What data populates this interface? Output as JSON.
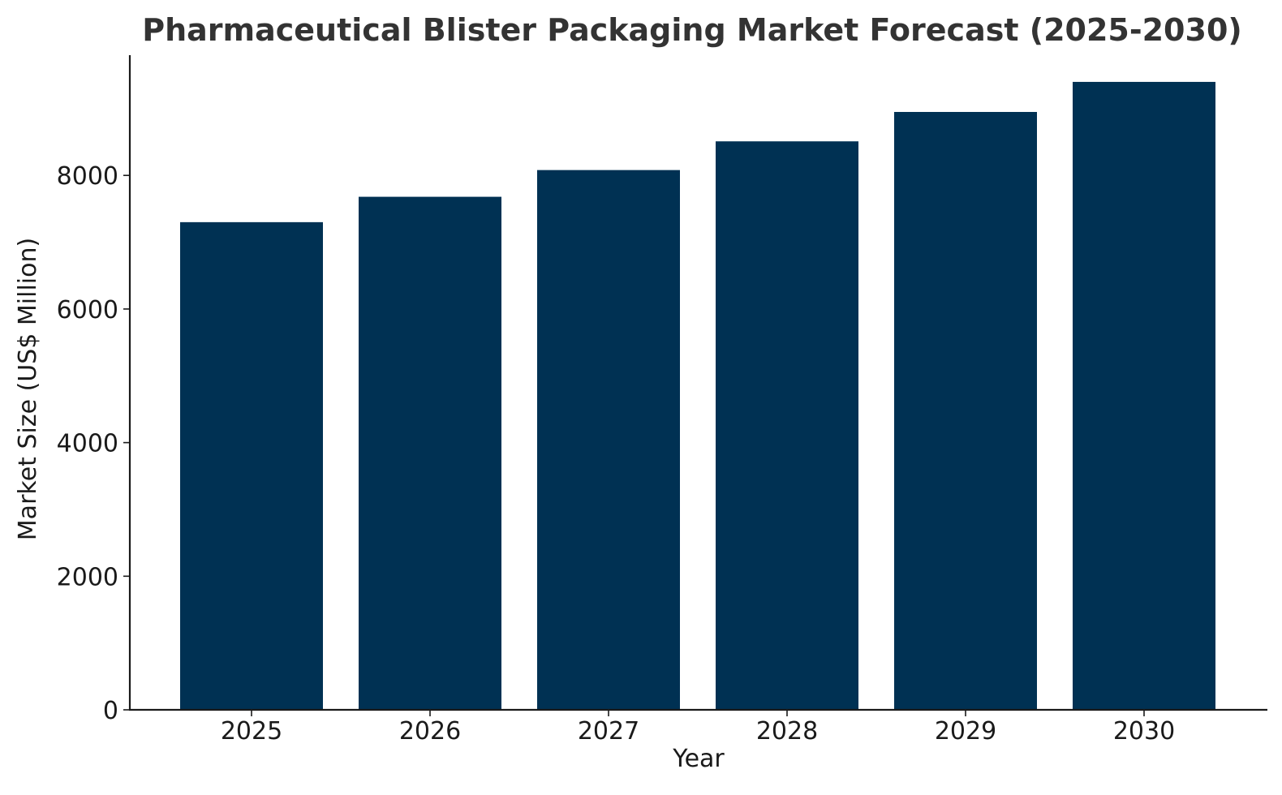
{
  "chart_data": {
    "type": "bar",
    "title": "Pharmaceutical Blister Packaging Market Forecast (2025-2030)",
    "xlabel": "Year",
    "ylabel": "Market Size (US$ Million)",
    "categories": [
      "2025",
      "2026",
      "2027",
      "2028",
      "2029",
      "2030"
    ],
    "values": [
      7300,
      7680,
      8080,
      8510,
      8950,
      9400
    ],
    "ylim": [
      0,
      9800
    ],
    "yticks": [
      0,
      2000,
      4000,
      6000,
      8000
    ],
    "grid": false,
    "legend": "none",
    "bar_color": "#003153",
    "text_color": "#1a1a1a",
    "title_color": "#333333"
  }
}
